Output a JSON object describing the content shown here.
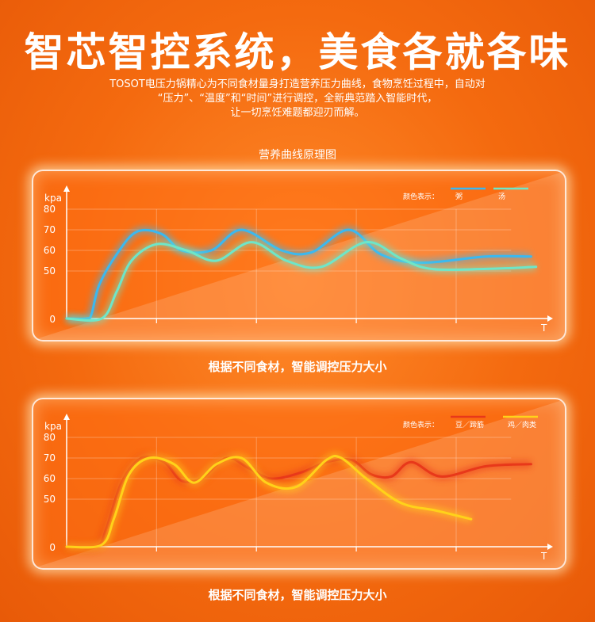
{
  "header": {
    "title": "智芯智控系统，美食各就各味",
    "intro_line1": "TOSOT电压力锅精心为不同食材量身打造营养压力曲线，食物烹饪过程中，自动对",
    "intro_line2": "“压力”、“温度”和“时间”进行调控，全新典范踏入智能时代，",
    "intro_line3": "让一切烹饪难题都迎刃而解。"
  },
  "chart1": {
    "title": "营养曲线原理图",
    "caption": "根据不同食材，智能调控压力大小"
  },
  "chart2": {
    "caption": "根据不同食材，智能调控压力大小"
  },
  "chart_data": [
    {
      "type": "line",
      "title": "营养曲线原理图",
      "ylabel": "kpa",
      "xlabel": "T",
      "yticks": [
        0,
        50,
        60,
        70,
        80
      ],
      "ylim": [
        0,
        85
      ],
      "grid": true,
      "legend_title": "颜色表示：",
      "legend_position": "top-right",
      "series": [
        {
          "name": "粥",
          "color": "#3ab8f0",
          "x": [
            0,
            0.8,
            1.0,
            1.3,
            2.0,
            2.8,
            3.8,
            4.6,
            5.8,
            7.0,
            8.6,
            9.8,
            11.3,
            12.6,
            14.2,
            16.8,
            18.6
          ],
          "y": [
            0,
            0,
            5,
            35,
            58,
            69,
            68,
            60,
            60,
            70,
            60,
            59,
            70,
            58,
            54,
            57,
            57
          ]
        },
        {
          "name": "汤",
          "color": "#6ee6c8",
          "x": [
            0,
            1.4,
            2.0,
            2.6,
            3.6,
            4.8,
            6.0,
            7.4,
            8.8,
            10.2,
            12.0,
            13.4,
            14.6,
            16.8,
            18.8
          ],
          "y": [
            0,
            0,
            28,
            55,
            63,
            60,
            55,
            64,
            55,
            52,
            64,
            56,
            51,
            51,
            52
          ]
        }
      ]
    },
    {
      "type": "line",
      "ylabel": "kpa",
      "xlabel": "T",
      "yticks": [
        0,
        50,
        60,
        70,
        80
      ],
      "ylim": [
        0,
        85
      ],
      "grid": true,
      "legend_title": "颜色表示：",
      "legend_position": "top-right",
      "series": [
        {
          "name": "豆／蹄筋",
          "color": "#e8381a",
          "x": [
            0,
            1.2,
            1.6,
            2.2,
            3.0,
            3.9,
            4.6,
            5.4,
            6.4,
            7.3,
            8.2,
            9.4,
            10.4,
            11.4,
            12.2,
            13.0,
            13.8,
            15.0,
            16.8,
            18.6
          ],
          "y": [
            0,
            0,
            20,
            58,
            70,
            68,
            59,
            60,
            70,
            65,
            60,
            63,
            68,
            69,
            62,
            61,
            68,
            61,
            66,
            67
          ]
        },
        {
          "name": "鸡／肉类",
          "color": "#ffd21a",
          "x": [
            0,
            1.4,
            1.9,
            2.5,
            3.3,
            4.3,
            5.1,
            6.0,
            7.0,
            8.0,
            9.2,
            10.4,
            11.0,
            12.0,
            13.4,
            14.8,
            16.2
          ],
          "y": [
            0,
            2,
            30,
            62,
            70,
            67,
            58,
            67,
            70,
            58,
            56,
            69,
            70,
            60,
            46,
            38,
            29
          ]
        }
      ]
    }
  ]
}
